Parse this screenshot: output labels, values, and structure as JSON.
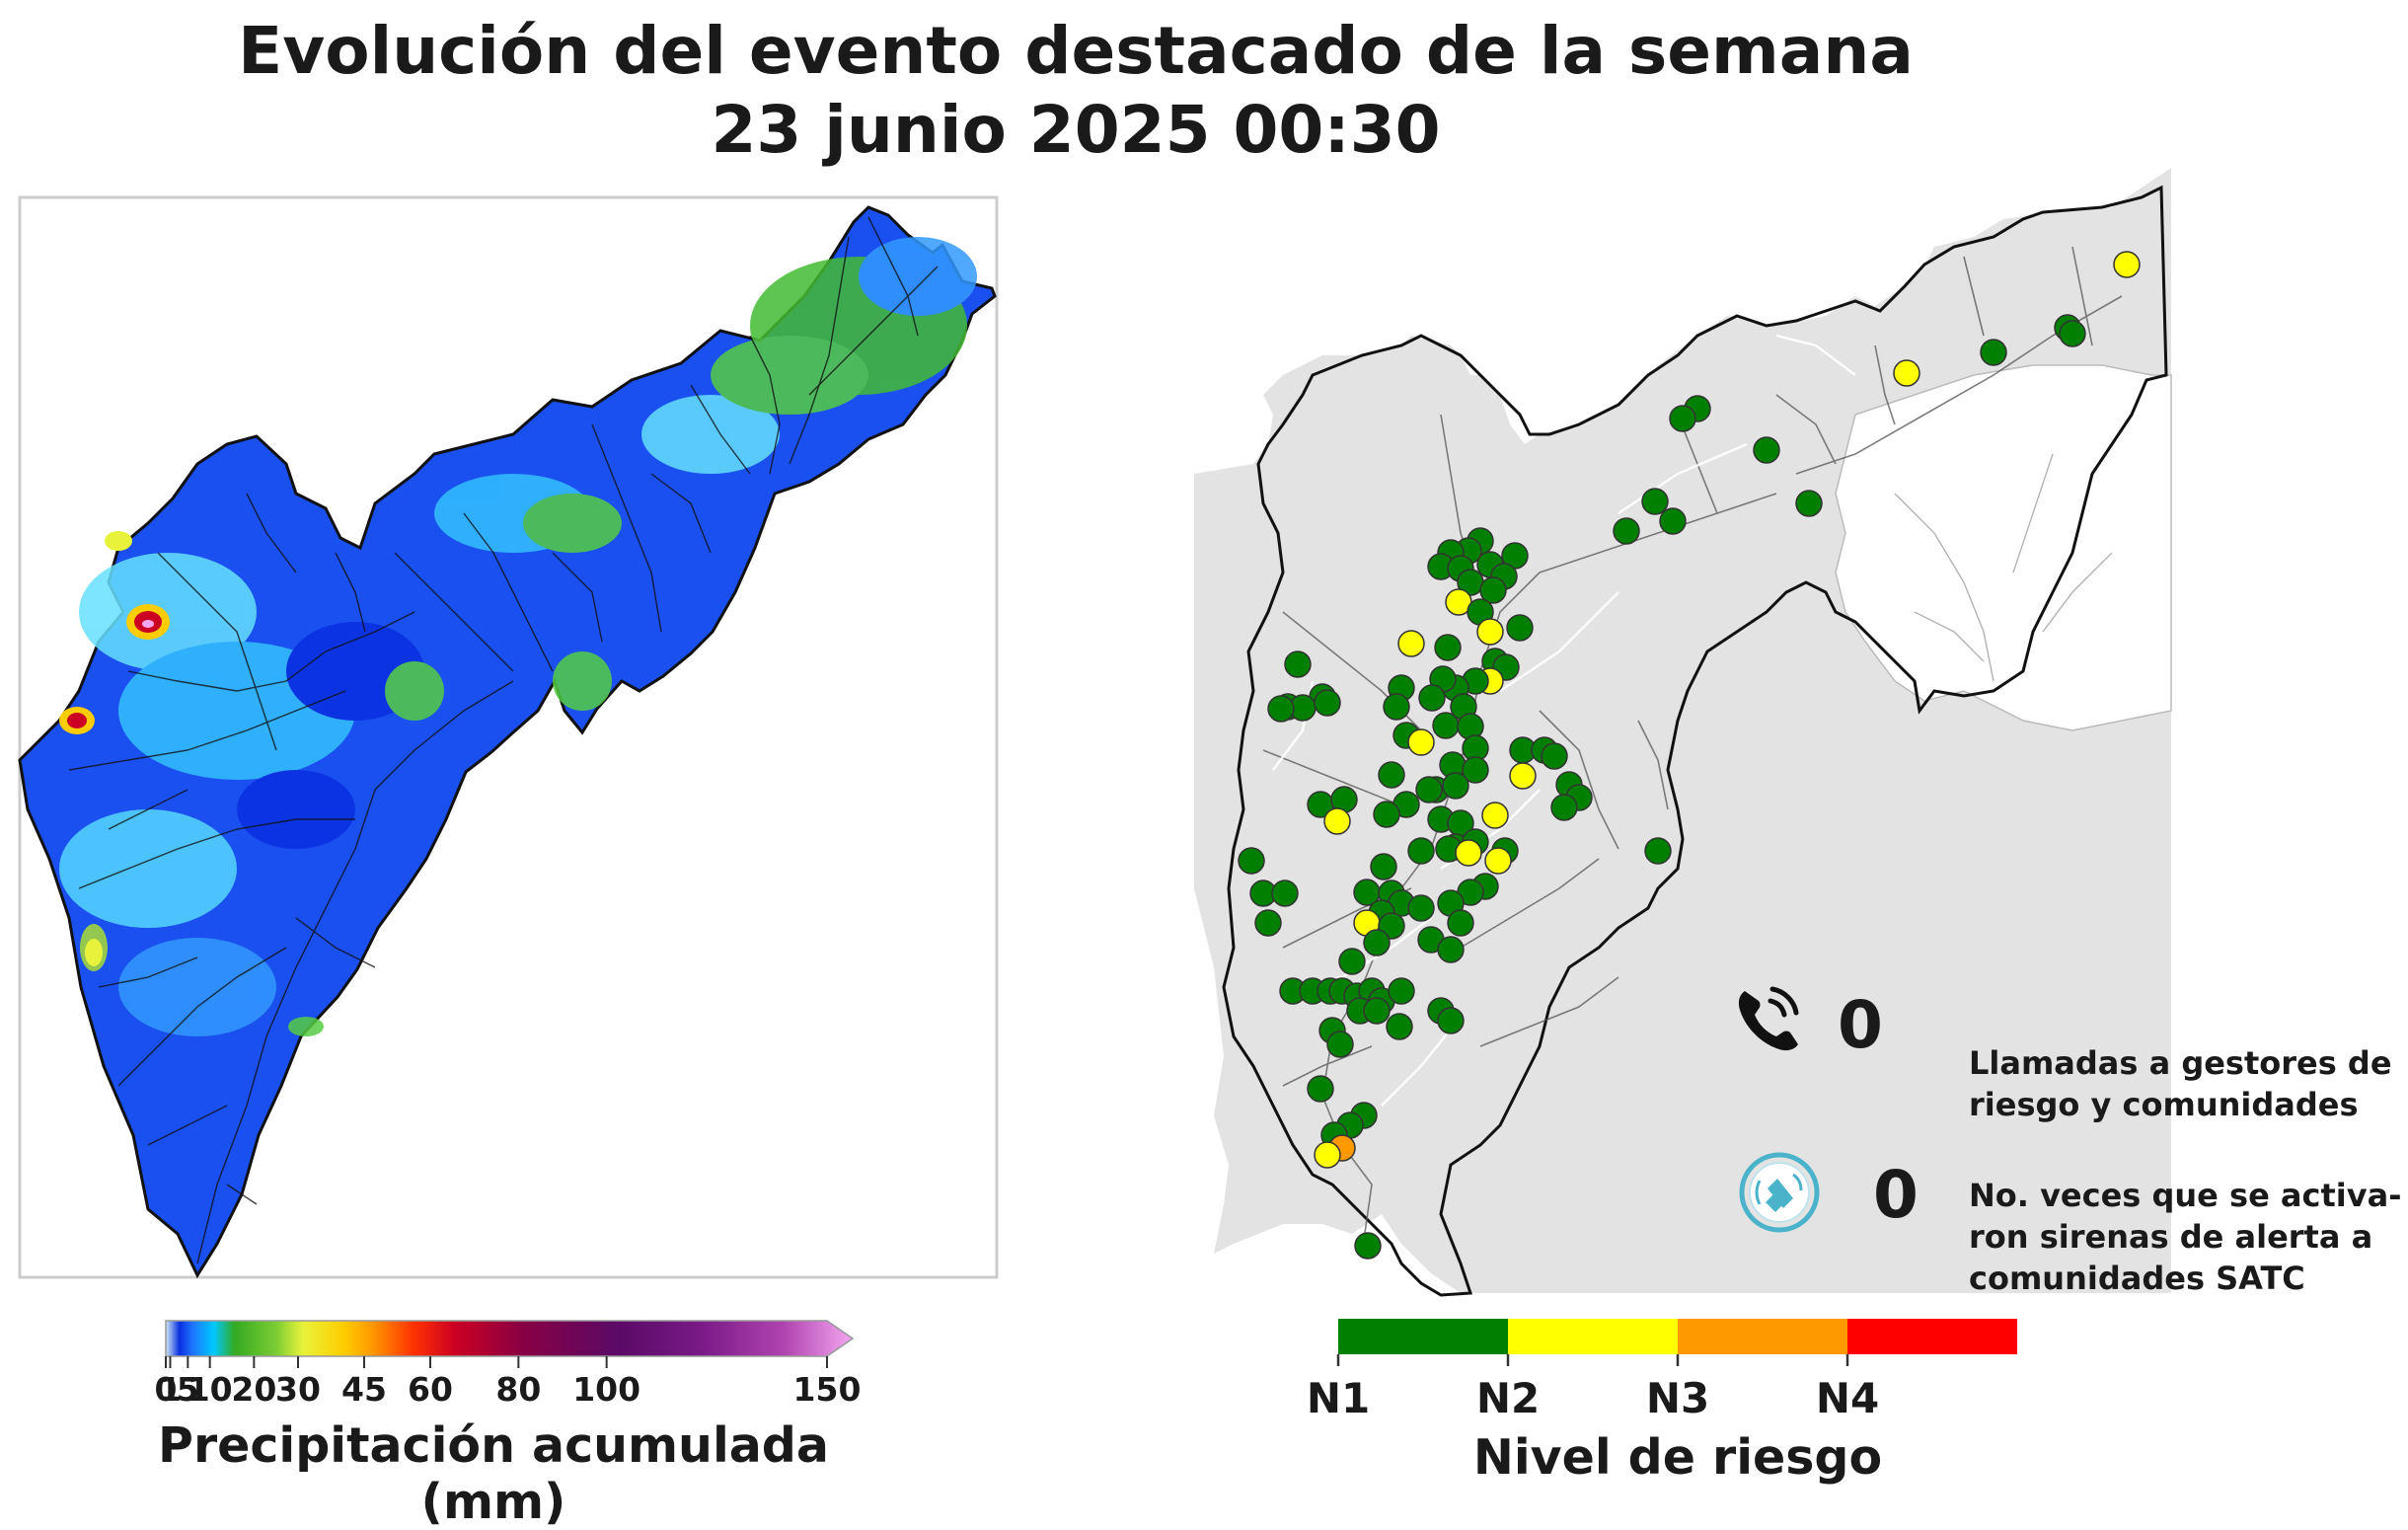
{
  "title": {
    "line1": "Evolución del evento destacado de la semana",
    "line2": "23 junio 2025 00:30"
  },
  "precip_legend": {
    "label": "Precipitación acumulada (mm)",
    "ticks": [
      "0",
      "1",
      "5",
      "10",
      "20",
      "30",
      "45",
      "60",
      "80",
      "100",
      "150"
    ],
    "tick_values": [
      0,
      1,
      5,
      10,
      20,
      30,
      45,
      60,
      80,
      100,
      150
    ],
    "colors": [
      "#cfe9f5",
      "#0a2fe0",
      "#1e78ff",
      "#00c8ff",
      "#33aa22",
      "#7acc33",
      "#e8f23a",
      "#ffcc00",
      "#ff9900",
      "#ff3300",
      "#cc0022",
      "#880044",
      "#5a0a66",
      "#7a1a88",
      "#b044b0",
      "#f4a6f0"
    ]
  },
  "risk_legend": {
    "label": "Nivel de riesgo",
    "levels": [
      "N1",
      "N2",
      "N3",
      "N4"
    ],
    "colors": [
      "#007f00",
      "#ffff00",
      "#ff9900",
      "#ff0000"
    ]
  },
  "stats": {
    "calls": {
      "value": "0",
      "icon": "phone-icon",
      "text": "Llamadas a gestores de riesgo y comunidades"
    },
    "sirens": {
      "value": "0",
      "icon": "siren-icon",
      "text": "No. veces que se activa- ron sirenas de alerta a comunidades SATC"
    }
  },
  "colors": {
    "region_fill": "#e3e3e3",
    "border": "#111111",
    "marker_green": "#007f00",
    "marker_yellow": "#ffff00",
    "marker_orange": "#ff9900",
    "icon_blue": "#4ab3c9"
  }
}
